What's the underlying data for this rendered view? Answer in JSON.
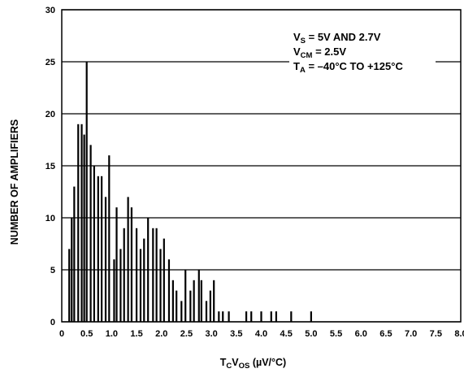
{
  "chart_data": {
    "type": "bar",
    "xlabel": {
      "main": "T",
      "sub1": "C",
      "mid": "V",
      "sub2": "OS",
      "tail": " (µV/°C)"
    },
    "ylabel": "NUMBER OF AMPLIFIERS",
    "xlim": [
      0,
      8.0
    ],
    "ylim": [
      0,
      30
    ],
    "xticks": [
      "0",
      "0.5",
      "1.0",
      "1.5",
      "2.0",
      "2.5",
      "3.0",
      "3.5",
      "4.0",
      "4.5",
      "5.0",
      "5.5",
      "6.0",
      "6.5",
      "7.0",
      "7.5",
      "8.0"
    ],
    "yticks": [
      "0",
      "5",
      "10",
      "15",
      "20",
      "25",
      "30"
    ],
    "grid": "horizontal",
    "annotation": [
      {
        "a": "V",
        "sub": "S",
        "b": " = 5V AND 2.7V"
      },
      {
        "a": "V",
        "sub": "CM",
        "b": " = 2.5V"
      },
      {
        "a": "T",
        "sub": "A",
        "b": " = –40°C TO +125°C"
      }
    ],
    "x": [
      0.15,
      0.2,
      0.25,
      0.33,
      0.4,
      0.45,
      0.5,
      0.58,
      0.65,
      0.73,
      0.8,
      0.88,
      0.95,
      1.05,
      1.1,
      1.18,
      1.25,
      1.33,
      1.4,
      1.5,
      1.58,
      1.65,
      1.73,
      1.83,
      1.9,
      1.98,
      2.05,
      2.15,
      2.23,
      2.3,
      2.4,
      2.48,
      2.58,
      2.65,
      2.75,
      2.8,
      2.9,
      2.98,
      3.05,
      3.15,
      3.23,
      3.35,
      3.7,
      3.8,
      4.0,
      4.2,
      4.3,
      4.6,
      5.0
    ],
    "values": [
      7,
      10,
      13,
      19,
      19,
      18,
      25,
      17,
      15,
      14,
      14,
      12,
      16,
      6,
      11,
      7,
      9,
      12,
      11,
      9,
      7,
      8,
      10,
      9,
      9,
      7,
      8,
      6,
      4,
      3,
      2,
      5,
      3,
      4,
      5,
      4,
      2,
      3,
      4,
      1,
      1,
      1,
      1,
      1,
      1,
      1,
      1,
      1,
      1
    ]
  }
}
